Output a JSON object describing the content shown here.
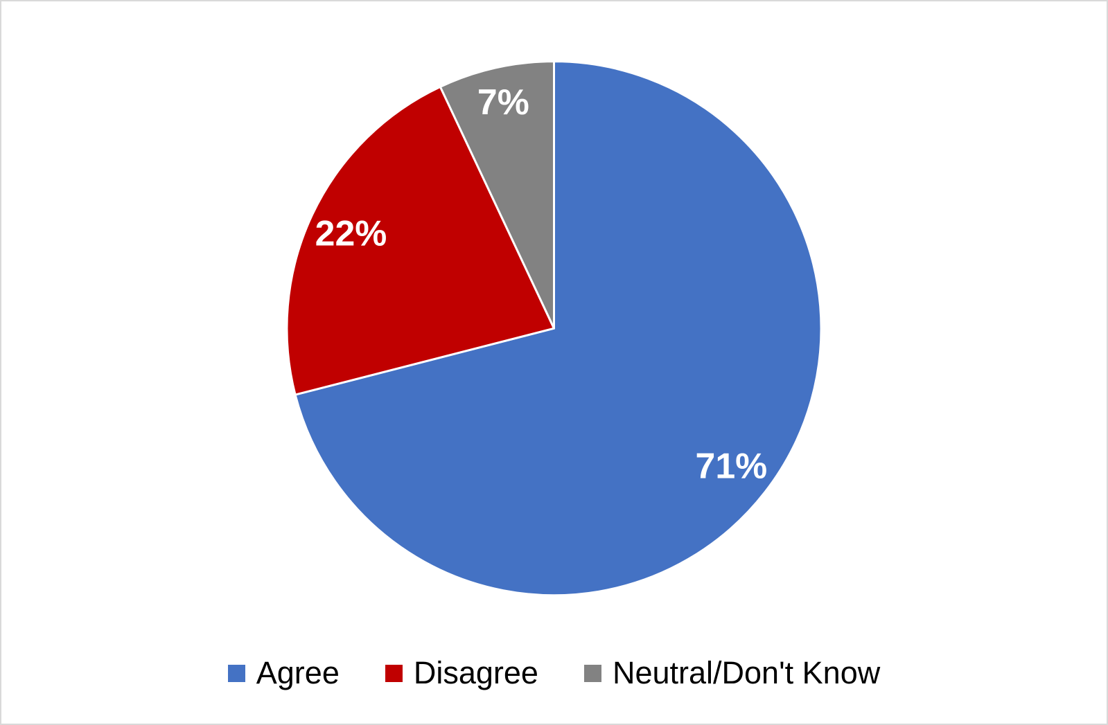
{
  "chart_data": {
    "type": "pie",
    "categories": [
      "Agree",
      "Disagree",
      "Neutral/Don't Know"
    ],
    "values": [
      71,
      22,
      7
    ],
    "data_labels": [
      "71%",
      "22%",
      "7%"
    ],
    "colors": [
      "#4472C4",
      "#C00000",
      "#828282"
    ],
    "data_label_color": "#FFFFFF",
    "slice_border_color": "#FFFFFF",
    "start_angle_deg": 0,
    "direction": "clockwise",
    "legend_position": "bottom",
    "label_radius_fractions": [
      0.84,
      0.84,
      0.87
    ],
    "background_color": "#FFFFFF",
    "frame_color": "#D9D9D9",
    "legend_text_color": "#000000"
  },
  "legend": {
    "items": [
      {
        "label": "Agree",
        "color": "#4472C4"
      },
      {
        "label": "Disagree",
        "color": "#C00000"
      },
      {
        "label": "Neutral/Don't Know",
        "color": "#828282"
      }
    ]
  }
}
